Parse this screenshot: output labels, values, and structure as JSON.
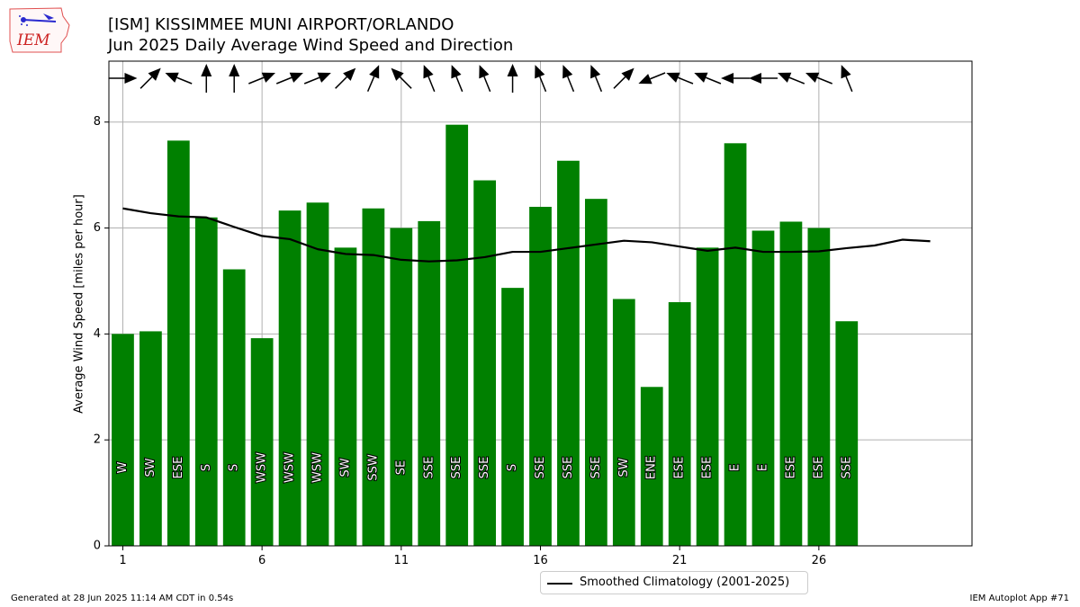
{
  "header": {
    "logo_text": "IEM",
    "title_line1": "[ISM] KISSIMMEE MUNI AIRPORT/ORLANDO",
    "title_line2": "Jun 2025 Daily Average Wind Speed and Direction"
  },
  "footer": {
    "generated": "Generated at 28 Jun 2025 11:14 AM CDT in 0.54s",
    "app": "IEM Autoplot App #71"
  },
  "legend": {
    "label": "Smoothed Climatology (2001-2025)"
  },
  "colors": {
    "bar": "#008000",
    "line": "#000000",
    "grid": "#b0b0b0",
    "bar_text": "#ffffff"
  },
  "chart_data": {
    "type": "bar",
    "ylabel": "Average Wind Speed [miles per hour]",
    "xlim": [
      0.5,
      31.5
    ],
    "ylim": [
      0,
      9.15
    ],
    "xticks": [
      1,
      6,
      11,
      16,
      21,
      26
    ],
    "yticks": [
      0,
      2,
      4,
      6,
      8
    ],
    "grid": true,
    "legend_position": "bottom-center",
    "days": [
      1,
      2,
      3,
      4,
      5,
      6,
      7,
      8,
      9,
      10,
      11,
      12,
      13,
      14,
      15,
      16,
      17,
      18,
      19,
      20,
      21,
      22,
      23,
      24,
      25,
      26,
      27
    ],
    "avg_speed": [
      4.0,
      4.05,
      7.65,
      6.2,
      5.22,
      3.92,
      6.33,
      6.48,
      5.63,
      6.37,
      6.0,
      6.13,
      7.95,
      6.9,
      4.87,
      6.4,
      7.27,
      6.55,
      4.66,
      3.0,
      4.6,
      5.63,
      7.6,
      5.95,
      6.12,
      6.0,
      4.24
    ],
    "direction_labels": [
      "W",
      "SW",
      "ESE",
      "S",
      "S",
      "WSW",
      "WSW",
      "WSW",
      "SW",
      "SSW",
      "SE",
      "SSE",
      "SSE",
      "SSE",
      "S",
      "SSE",
      "SSE",
      "SSE",
      "SW",
      "ENE",
      "ESE",
      "ESE",
      "E",
      "E",
      "ESE",
      "ESE",
      "SSE"
    ],
    "wind_dir_deg": [
      270,
      225,
      112,
      180,
      180,
      248,
      248,
      248,
      225,
      203,
      135,
      158,
      158,
      158,
      180,
      158,
      158,
      158,
      225,
      68,
      112,
      112,
      90,
      90,
      112,
      112,
      158
    ],
    "series": [
      {
        "name": "Smoothed Climatology (2001-2025)",
        "x": [
          1,
          2,
          3,
          4,
          5,
          6,
          7,
          8,
          9,
          10,
          11,
          12,
          13,
          14,
          15,
          16,
          17,
          18,
          19,
          20,
          21,
          22,
          23,
          24,
          25,
          26,
          27,
          28,
          29,
          30
        ],
        "values": [
          6.37,
          6.28,
          6.22,
          6.2,
          6.02,
          5.85,
          5.79,
          5.6,
          5.51,
          5.49,
          5.4,
          5.37,
          5.39,
          5.45,
          5.55,
          5.55,
          5.62,
          5.69,
          5.76,
          5.73,
          5.65,
          5.57,
          5.63,
          5.55,
          5.55,
          5.56,
          5.62,
          5.67,
          5.78,
          5.75
        ]
      }
    ]
  }
}
